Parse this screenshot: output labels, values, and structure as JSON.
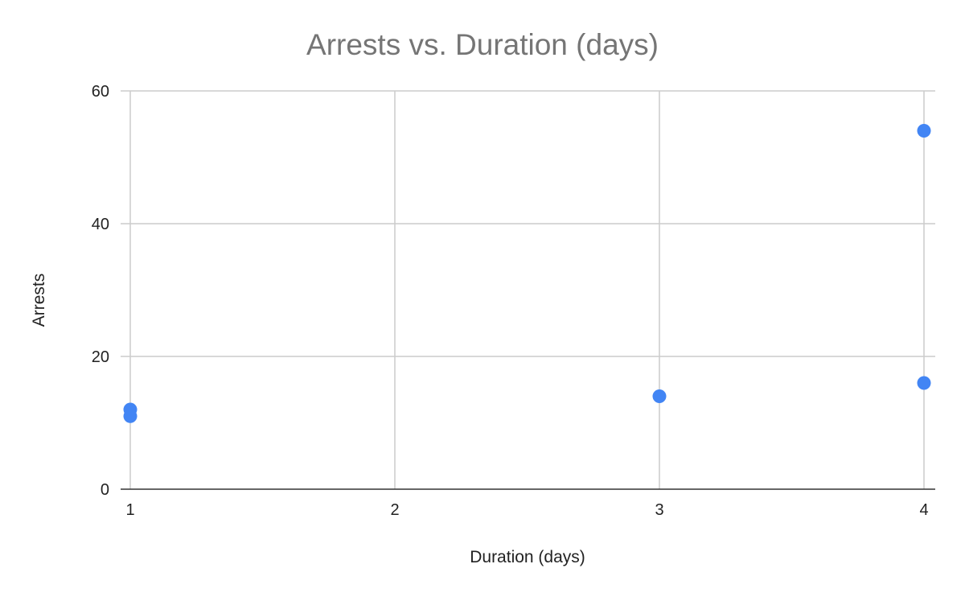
{
  "chart_data": {
    "type": "scatter",
    "title": "Arrests vs. Duration (days)",
    "xlabel": "Duration (days)",
    "ylabel": "Arrests",
    "xlim": [
      1,
      4
    ],
    "ylim": [
      0,
      60
    ],
    "x_ticks": [
      1,
      2,
      3,
      4
    ],
    "y_ticks": [
      0,
      20,
      40,
      60
    ],
    "grid": true,
    "legend": "none",
    "series": [
      {
        "color": "#4285f4",
        "points": [
          {
            "x": 1,
            "y": 12
          },
          {
            "x": 1,
            "y": 11
          },
          {
            "x": 3,
            "y": 14
          },
          {
            "x": 4,
            "y": 54
          },
          {
            "x": 4,
            "y": 16
          }
        ]
      }
    ]
  }
}
